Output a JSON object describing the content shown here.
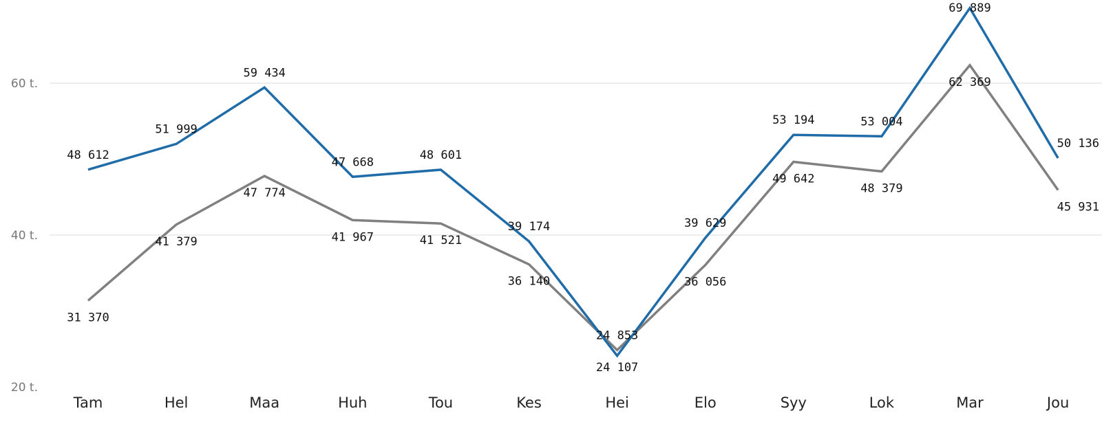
{
  "chart_data": {
    "type": "line",
    "title": "",
    "xlabel": "",
    "ylabel": "",
    "categories": [
      "Tam",
      "Hel",
      "Maa",
      "Huh",
      "Tou",
      "Kes",
      "Hei",
      "Elo",
      "Syy",
      "Lok",
      "Mar",
      "Jou"
    ],
    "ylim": [
      20000,
      70000
    ],
    "y_ticks": [
      {
        "value": 20000,
        "label": "20 t."
      },
      {
        "value": 40000,
        "label": "40 t."
      },
      {
        "value": 60000,
        "label": "60 t."
      }
    ],
    "grid": true,
    "legend": "none",
    "series": [
      {
        "color": "#1F6CA8",
        "values": [
          48612,
          51999,
          59434,
          47668,
          48601,
          39174,
          24107,
          39629,
          53194,
          53004,
          69889,
          50136
        ],
        "labels": [
          "48 612",
          "51 999",
          "59 434",
          "47 668",
          "48 601",
          "39 174",
          "24 107",
          "39 629",
          "53 194",
          "53 004",
          "69 889",
          "50 136"
        ]
      },
      {
        "color": "#808080",
        "values": [
          31370,
          41379,
          47774,
          41967,
          41521,
          36140,
          24853,
          36056,
          49642,
          48379,
          62369,
          45931
        ],
        "labels": [
          "31 370",
          "41 379",
          "47 774",
          "41 967",
          "41 521",
          "36 140",
          "24 853",
          "36 056",
          "49 642",
          "48 379",
          "62 369",
          "45 931"
        ]
      }
    ]
  }
}
